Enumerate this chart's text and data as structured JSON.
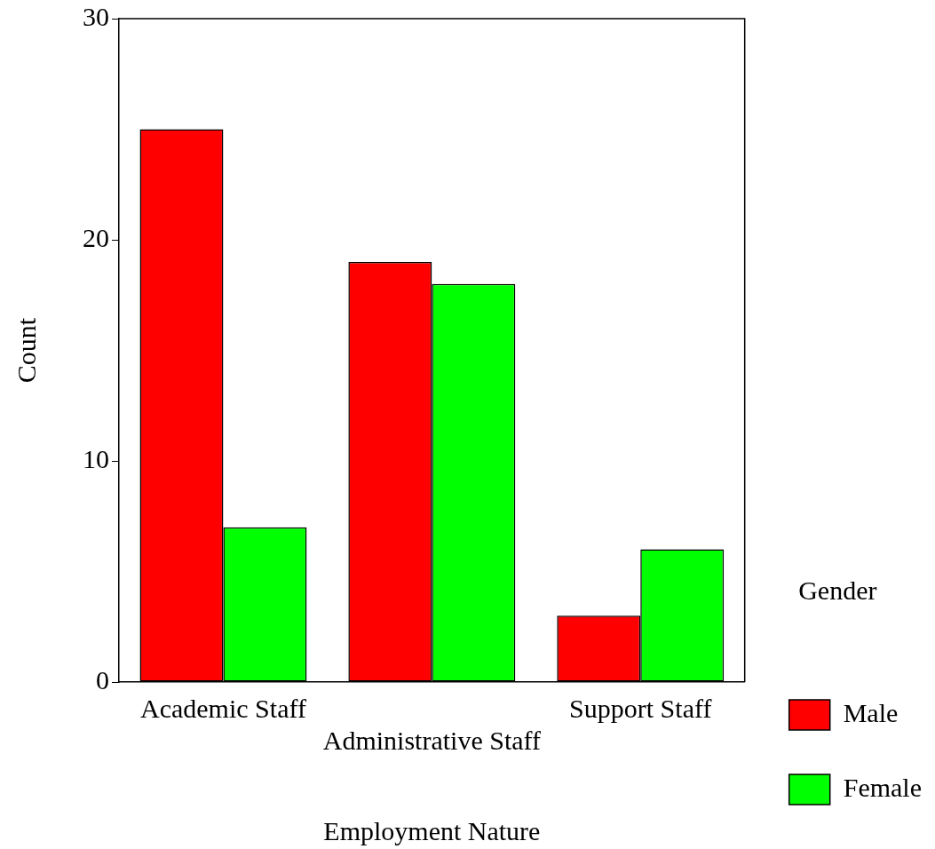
{
  "chart_data": {
    "type": "bar",
    "xlabel": "Employment Nature",
    "ylabel": "Count",
    "legend_title": "Gender",
    "categories": [
      "Academic Staff",
      "Administrative Staff",
      "Support Staff"
    ],
    "series": [
      {
        "name": "Male",
        "color": "#ff0000",
        "values": [
          25,
          19,
          3
        ]
      },
      {
        "name": "Female",
        "color": "#00ff00",
        "values": [
          7,
          18,
          6
        ]
      }
    ],
    "ylim": [
      0,
      30
    ],
    "yticks": [
      0,
      10,
      20,
      30
    ],
    "grid": false,
    "legend": "right"
  }
}
